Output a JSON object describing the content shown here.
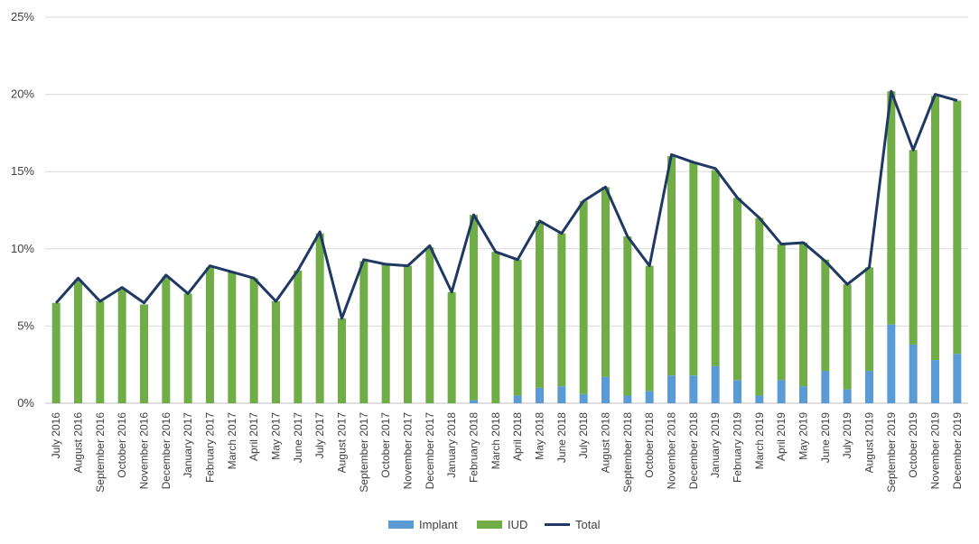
{
  "chart_data": {
    "type": "bar",
    "stacked": true,
    "categories": [
      "July 2016",
      "August 2016",
      "September 2016",
      "October 2016",
      "November 2016",
      "December 2016",
      "January 2017",
      "February 2017",
      "March 2017",
      "April 2017",
      "May 2017",
      "June 2017",
      "July 2017",
      "August 2017",
      "September 2017",
      "October 2017",
      "November 2017",
      "December 2017",
      "January 2018",
      "February 2018",
      "March 2018",
      "April 2018",
      "May 2018",
      "June 2018",
      "July 2018",
      "August 2018",
      "September 2018",
      "October 2018",
      "November 2018",
      "December 2018",
      "January 2019",
      "February 2019",
      "March 2019",
      "April 2019",
      "May 2019",
      "June 2019",
      "July 2019",
      "August 2019",
      "September 2019",
      "October 2019",
      "November 2019",
      "December 2019"
    ],
    "series": [
      {
        "name": "Implant",
        "kind": "bar",
        "color": "#5B9BD5",
        "values": [
          0,
          0,
          0,
          0,
          0,
          0,
          0,
          0,
          0,
          0,
          0,
          0,
          0,
          0,
          0,
          0,
          0,
          0,
          0,
          0.2,
          0,
          0.5,
          1.0,
          1.1,
          0.6,
          1.7,
          0.5,
          0.8,
          1.8,
          1.8,
          2.4,
          1.5,
          0.5,
          1.5,
          1.1,
          2.1,
          0.9,
          2.1,
          5.1,
          3.8,
          2.8,
          3.2
        ]
      },
      {
        "name": "IUD",
        "kind": "bar",
        "color": "#70AD47",
        "values": [
          6.5,
          8.0,
          6.6,
          7.4,
          6.4,
          8.2,
          7.1,
          8.8,
          8.5,
          8.1,
          6.6,
          8.6,
          11.0,
          5.5,
          9.2,
          9.0,
          8.9,
          10.1,
          7.2,
          12.0,
          9.8,
          8.8,
          10.8,
          9.9,
          12.5,
          12.3,
          10.3,
          8.1,
          14.2,
          13.8,
          12.7,
          11.8,
          11.5,
          8.8,
          9.3,
          7.2,
          6.8,
          6.7,
          15.1,
          12.6,
          17.1,
          16.4
        ]
      },
      {
        "name": "Total",
        "kind": "line",
        "color": "#1F3864",
        "values": [
          6.5,
          8.1,
          6.6,
          7.5,
          6.5,
          8.3,
          7.1,
          8.9,
          8.5,
          8.1,
          6.6,
          8.6,
          11.1,
          5.5,
          9.3,
          9.0,
          8.9,
          10.2,
          7.2,
          12.2,
          9.8,
          9.3,
          11.8,
          11.0,
          13.1,
          14.0,
          10.8,
          8.9,
          16.1,
          15.6,
          15.2,
          13.3,
          12.0,
          10.3,
          10.4,
          9.2,
          7.7,
          8.8,
          20.2,
          16.4,
          20.0,
          19.6
        ]
      }
    ],
    "yticks": [
      "0%",
      "5%",
      "10%",
      "15%",
      "20%",
      "25%"
    ],
    "ylim": [
      0,
      25
    ],
    "grid": true,
    "legend": "bottom-center"
  },
  "legend": {
    "implant_label": "Implant",
    "iud_label": "IUD",
    "total_label": "Total"
  }
}
